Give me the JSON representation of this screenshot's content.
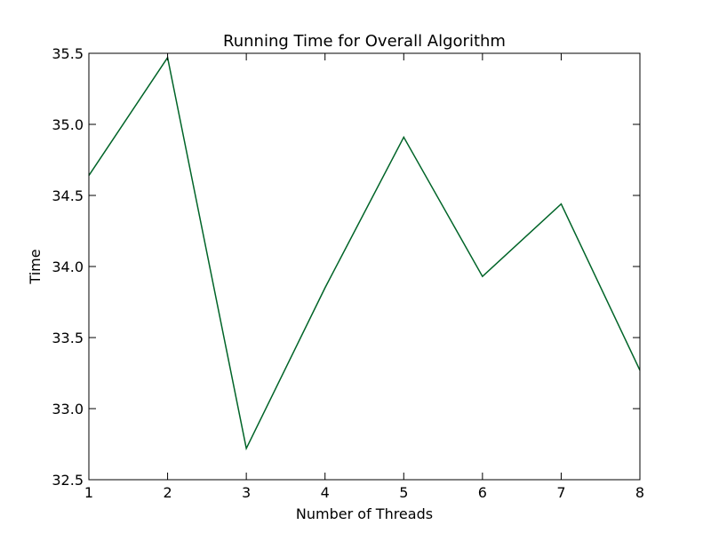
{
  "chart_data": {
    "type": "line",
    "title": "Running Time for Overall Algorithm",
    "xlabel": "Number of Threads",
    "ylabel": "Time",
    "xlim": [
      1,
      8
    ],
    "ylim": [
      32.5,
      35.5
    ],
    "xticks": [
      "1",
      "2",
      "3",
      "4",
      "5",
      "6",
      "7",
      "8"
    ],
    "yticks": [
      "32.5",
      "33.0",
      "33.5",
      "34.0",
      "34.5",
      "35.0",
      "35.5"
    ],
    "grid": false,
    "legend": false,
    "series": [
      {
        "color": "#006428",
        "x": [
          1,
          2,
          3,
          4,
          5,
          6,
          7,
          8
        ],
        "y": [
          34.64,
          35.47,
          32.72,
          33.85,
          34.91,
          33.93,
          34.44,
          33.27
        ]
      }
    ]
  }
}
